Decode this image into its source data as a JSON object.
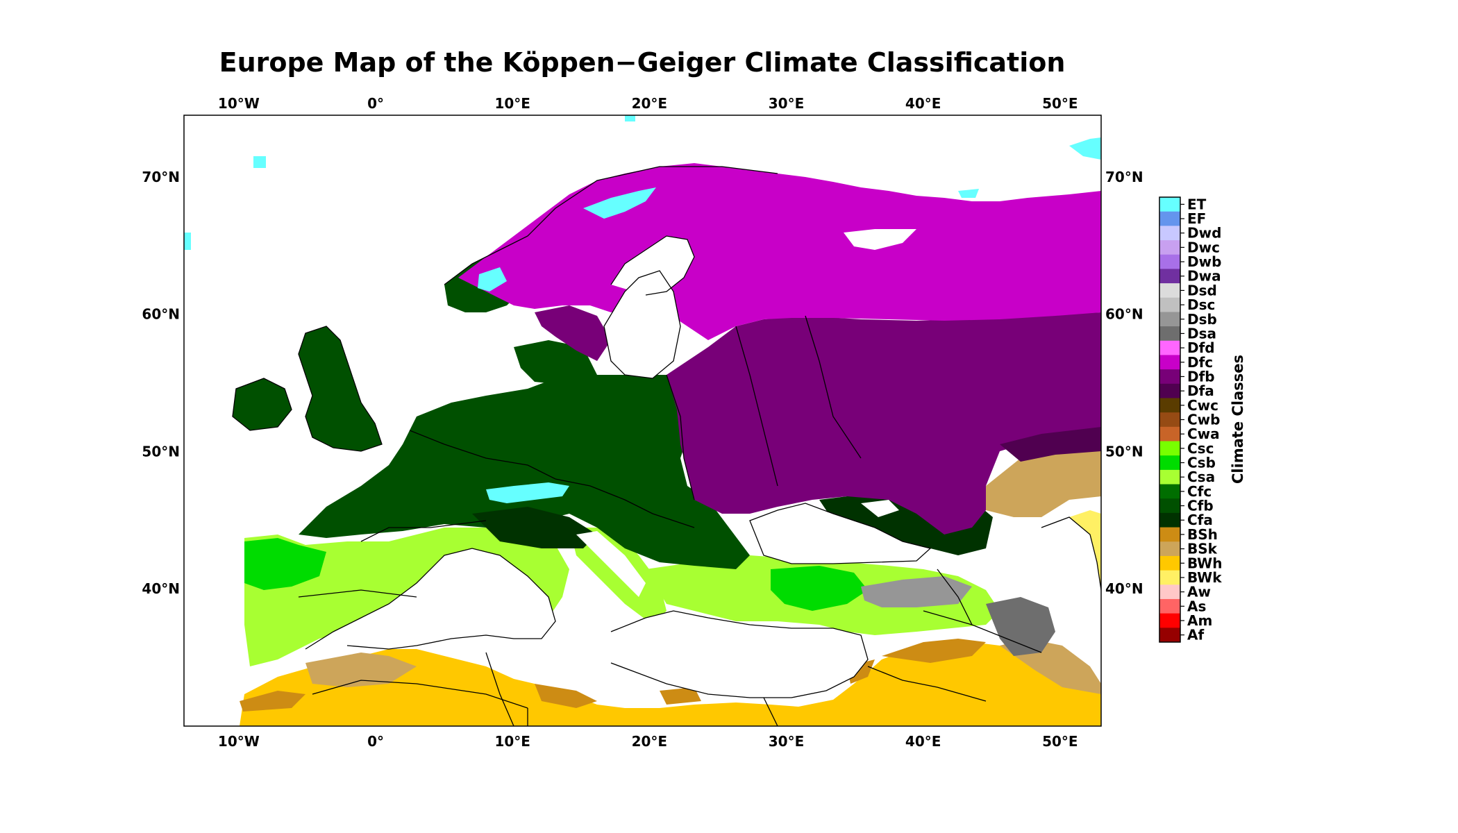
{
  "title": "Europe Map of the Köppen−Geiger Climate Classification",
  "map": {
    "lon_range": [
      -14,
      53
    ],
    "lat_range": [
      30,
      74.5
    ],
    "lon_ticks": [
      {
        "value": -10,
        "label": "10°W"
      },
      {
        "value": 0,
        "label": "0°"
      },
      {
        "value": 10,
        "label": "10°E"
      },
      {
        "value": 20,
        "label": "20°E"
      },
      {
        "value": 30,
        "label": "30°E"
      },
      {
        "value": 40,
        "label": "40°E"
      },
      {
        "value": 50,
        "label": "50°E"
      }
    ],
    "lat_ticks": [
      {
        "value": 70,
        "label": "70°N"
      },
      {
        "value": 60,
        "label": "60°N"
      },
      {
        "value": 50,
        "label": "50°N"
      },
      {
        "value": 40,
        "label": "40°N"
      }
    ]
  },
  "colorbar": {
    "title": "Climate Classes",
    "classes": [
      {
        "label": "ET",
        "color": "#66ffff"
      },
      {
        "label": "EF",
        "color": "#6495ed"
      },
      {
        "label": "Dwd",
        "color": "#c8c8ff"
      },
      {
        "label": "Dwc",
        "color": "#c8a0f0"
      },
      {
        "label": "Dwb",
        "color": "#a870e8"
      },
      {
        "label": "Dwa",
        "color": "#7030a0"
      },
      {
        "label": "Dsd",
        "color": "#dcdcdc"
      },
      {
        "label": "Dsc",
        "color": "#c0c0c0"
      },
      {
        "label": "Dsb",
        "color": "#969696"
      },
      {
        "label": "Dsa",
        "color": "#6e6e6e"
      },
      {
        "label": "Dfd",
        "color": "#ff66ff"
      },
      {
        "label": "Dfc",
        "color": "#c800c8"
      },
      {
        "label": "Dfb",
        "color": "#780078"
      },
      {
        "label": "Dfa",
        "color": "#500050"
      },
      {
        "label": "Cwc",
        "color": "#5a3c00"
      },
      {
        "label": "Cwb",
        "color": "#964b14"
      },
      {
        "label": "Cwa",
        "color": "#c86428"
      },
      {
        "label": "Csc",
        "color": "#78ff00"
      },
      {
        "label": "Csb",
        "color": "#00dc00"
      },
      {
        "label": "Csa",
        "color": "#a8ff32"
      },
      {
        "label": "Cfc",
        "color": "#006e00"
      },
      {
        "label": "Cfb",
        "color": "#005000"
      },
      {
        "label": "Cfa",
        "color": "#003200"
      },
      {
        "label": "BSh",
        "color": "#cd8c14"
      },
      {
        "label": "BSk",
        "color": "#cda55a"
      },
      {
        "label": "BWh",
        "color": "#ffc800"
      },
      {
        "label": "BWk",
        "color": "#fff064"
      },
      {
        "label": "Aw",
        "color": "#ffc8c8"
      },
      {
        "label": "As",
        "color": "#ff6464"
      },
      {
        "label": "Am",
        "color": "#ff0000"
      },
      {
        "label": "Af",
        "color": "#960000"
      }
    ]
  }
}
